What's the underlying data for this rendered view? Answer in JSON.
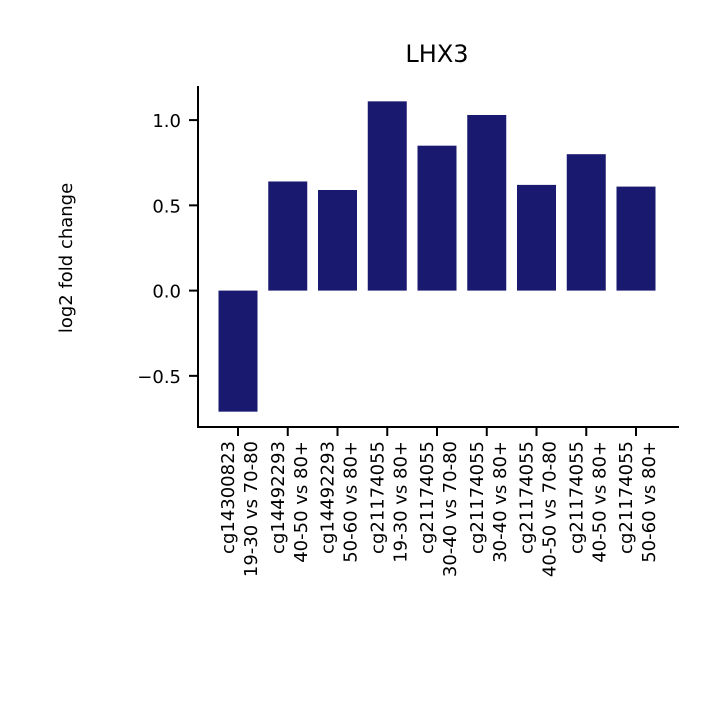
{
  "chart_data": {
    "type": "bar",
    "title": "LHX3",
    "xlabel": "",
    "ylabel": "log2 fold change",
    "ylim": [
      -0.8,
      1.2
    ],
    "yticks": [
      -0.5,
      0.0,
      0.5,
      1.0
    ],
    "ytick_labels": [
      "−0.5",
      "0.0",
      "0.5",
      "1.0"
    ],
    "bar_color": "#191970",
    "grid": false,
    "categories": [
      [
        "cg14300823",
        "19-30 vs 70-80"
      ],
      [
        "cg14492293",
        "40-50 vs 80+"
      ],
      [
        "cg14492293",
        "50-60 vs 80+"
      ],
      [
        "cg21174055",
        "19-30 vs 80+"
      ],
      [
        "cg21174055",
        "30-40 vs 70-80"
      ],
      [
        "cg21174055",
        "30-40 vs 80+"
      ],
      [
        "cg21174055",
        "40-50 vs 70-80"
      ],
      [
        "cg21174055",
        "40-50 vs 80+"
      ],
      [
        "cg21174055",
        "50-60 vs 80+"
      ]
    ],
    "values": [
      -0.71,
      0.64,
      0.59,
      1.11,
      0.85,
      1.03,
      0.62,
      0.8,
      0.61
    ]
  }
}
